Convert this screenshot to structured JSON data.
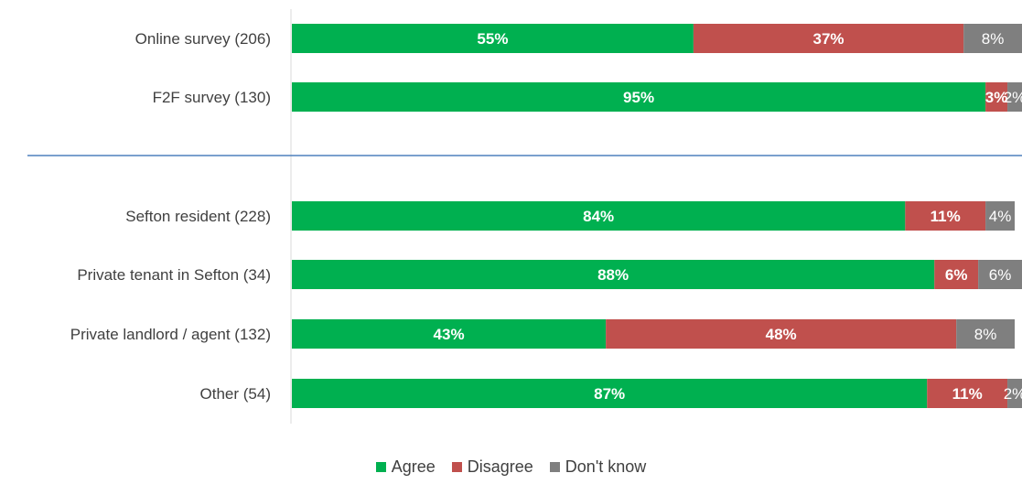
{
  "chart_data": {
    "type": "bar",
    "orientation": "horizontal",
    "stacked": true,
    "percent_stacked": true,
    "xlim": [
      0,
      100
    ],
    "categories": [
      "Online survey (206)",
      "F2F survey (130)",
      "Sefton resident (228)",
      "Private tenant in Sefton (34)",
      "Private landlord / agent (132)",
      "Other (54)"
    ],
    "series": [
      {
        "name": "Agree",
        "color": "#00b050",
        "values": [
          55,
          95,
          84,
          88,
          43,
          87
        ],
        "labels": [
          "55%",
          "95%",
          "84%",
          "88%",
          "43%",
          "87%"
        ]
      },
      {
        "name": "Disagree",
        "color": "#c0504d",
        "values": [
          37,
          3,
          11,
          6,
          48,
          11
        ],
        "labels": [
          "37%",
          "3%",
          "11%",
          "6%",
          "48%",
          "11%"
        ]
      },
      {
        "name": "Don't know",
        "color": "#7f7f7f",
        "values": [
          8,
          2,
          4,
          6,
          8,
          2
        ],
        "labels": [
          "8%",
          "2%",
          "4%",
          "6%",
          "8%",
          "2%"
        ]
      }
    ],
    "grid": false,
    "legend_position": "bottom"
  },
  "legend": {
    "items": [
      {
        "label": "Agree",
        "color": "#00b050"
      },
      {
        "label": "Disagree",
        "color": "#c0504d"
      },
      {
        "label": "Don't know",
        "color": "#7f7f7f"
      }
    ]
  }
}
